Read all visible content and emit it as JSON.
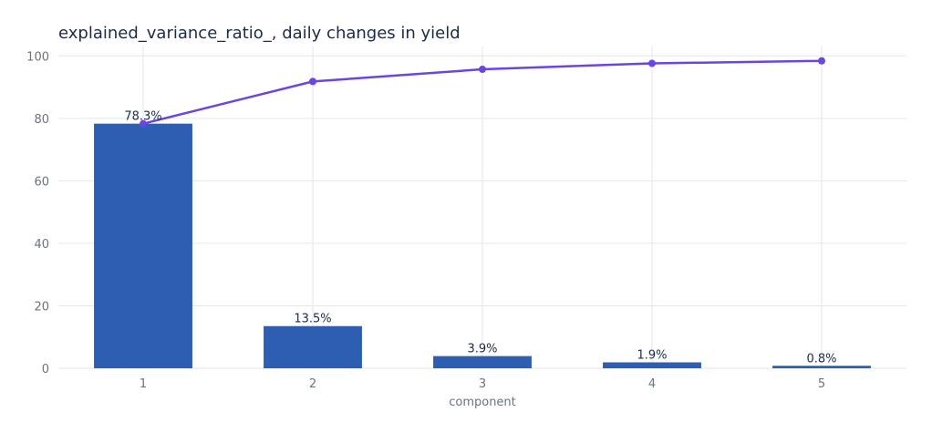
{
  "chart_data": {
    "type": "bar",
    "title": "explained_variance_ratio_, daily changes in yield",
    "xlabel": "component",
    "ylabel": "",
    "categories": [
      "1",
      "2",
      "3",
      "4",
      "5"
    ],
    "ylim": [
      0,
      103
    ],
    "yticks": [
      0,
      20,
      40,
      60,
      80,
      100
    ],
    "grid": true,
    "series": [
      {
        "type": "bar",
        "values": [
          78.3,
          13.5,
          3.9,
          1.9,
          0.8
        ],
        "labels": [
          "78.3%",
          "13.5%",
          "3.9%",
          "1.9%",
          "0.8%"
        ],
        "color": "#2e5eb2"
      },
      {
        "type": "line",
        "values": [
          78.3,
          91.8,
          95.7,
          97.6,
          98.4
        ],
        "color": "#6b45e0"
      }
    ]
  }
}
